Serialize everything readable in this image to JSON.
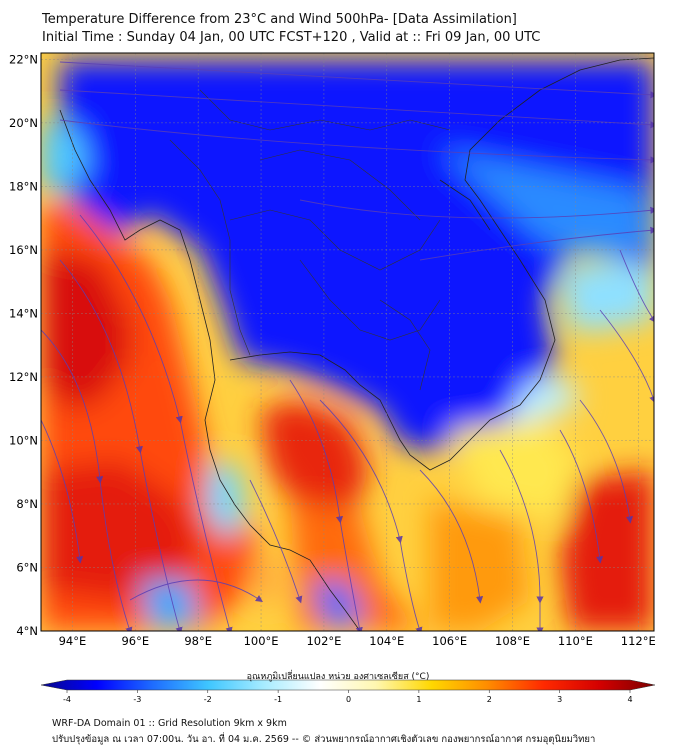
{
  "title_line1": "Temperature Difference from 23°C and Wind 500hPa- [Data Assimilation]",
  "title_line2": "Initial Time : Sunday 04 Jan, 00 UTC FCST+120 , Valid at ::  Fri 09 Jan, 00 UTC",
  "map": {
    "lon_range": [
      93,
      112.5
    ],
    "lat_range": [
      4,
      22.2
    ],
    "lat_ticks": [
      {
        "value": 22,
        "label": "22°N"
      },
      {
        "value": 20,
        "label": "20°N"
      },
      {
        "value": 18,
        "label": "18°N"
      },
      {
        "value": 16,
        "label": "16°N"
      },
      {
        "value": 14,
        "label": "14°N"
      },
      {
        "value": 12,
        "label": "12°N"
      },
      {
        "value": 10,
        "label": "10°N"
      },
      {
        "value": 8,
        "label": "8°N"
      },
      {
        "value": 6,
        "label": "6°N"
      },
      {
        "value": 4,
        "label": "4°N"
      }
    ],
    "lon_ticks": [
      {
        "value": 94,
        "label": "94°E"
      },
      {
        "value": 96,
        "label": "96°E"
      },
      {
        "value": 98,
        "label": "98°E"
      },
      {
        "value": 100,
        "label": "100°E"
      },
      {
        "value": 102,
        "label": "102°E"
      },
      {
        "value": 104,
        "label": "104°E"
      },
      {
        "value": 106,
        "label": "106°E"
      },
      {
        "value": 108,
        "label": "108°E"
      },
      {
        "value": 110,
        "label": "110°E"
      },
      {
        "value": 112,
        "label": "112°E"
      }
    ]
  },
  "colorbar": {
    "title": "อุณหภูมิเปลี่ยนแปลง หน่วย องศาเซลเซียส (°C)",
    "min": -4,
    "max": 4,
    "ticks": [
      {
        "value": -4,
        "label": "-4"
      },
      {
        "value": -3,
        "label": "-3"
      },
      {
        "value": -2,
        "label": "-2"
      },
      {
        "value": -1,
        "label": "-1"
      },
      {
        "value": 0,
        "label": "0"
      },
      {
        "value": 1,
        "label": "1"
      },
      {
        "value": 2,
        "label": "2"
      },
      {
        "value": 3,
        "label": "3"
      },
      {
        "value": 4,
        "label": "4"
      }
    ],
    "colors": [
      "#08088a",
      "#0000ff",
      "#1e6cff",
      "#3fc6ff",
      "#a8ecff",
      "#ffffff",
      "#fff7b0",
      "#ffd700",
      "#ff8c00",
      "#ff2a00",
      "#d40000",
      "#7a0000"
    ]
  },
  "footer_line1": "WRF-DA Domain 01 :: Grid Resolution 9km x 9km",
  "footer_line2": "ปรับปรุงข้อมูล ณ เวลา 07:00น. วัน อา. ที่ 04 ม.ค. 2569 -- © ส่วนพยากรณ์อากาศเชิงตัวเลข กองพยากรณ์อากาศ กรมอุตุนิยมวิทยา"
}
